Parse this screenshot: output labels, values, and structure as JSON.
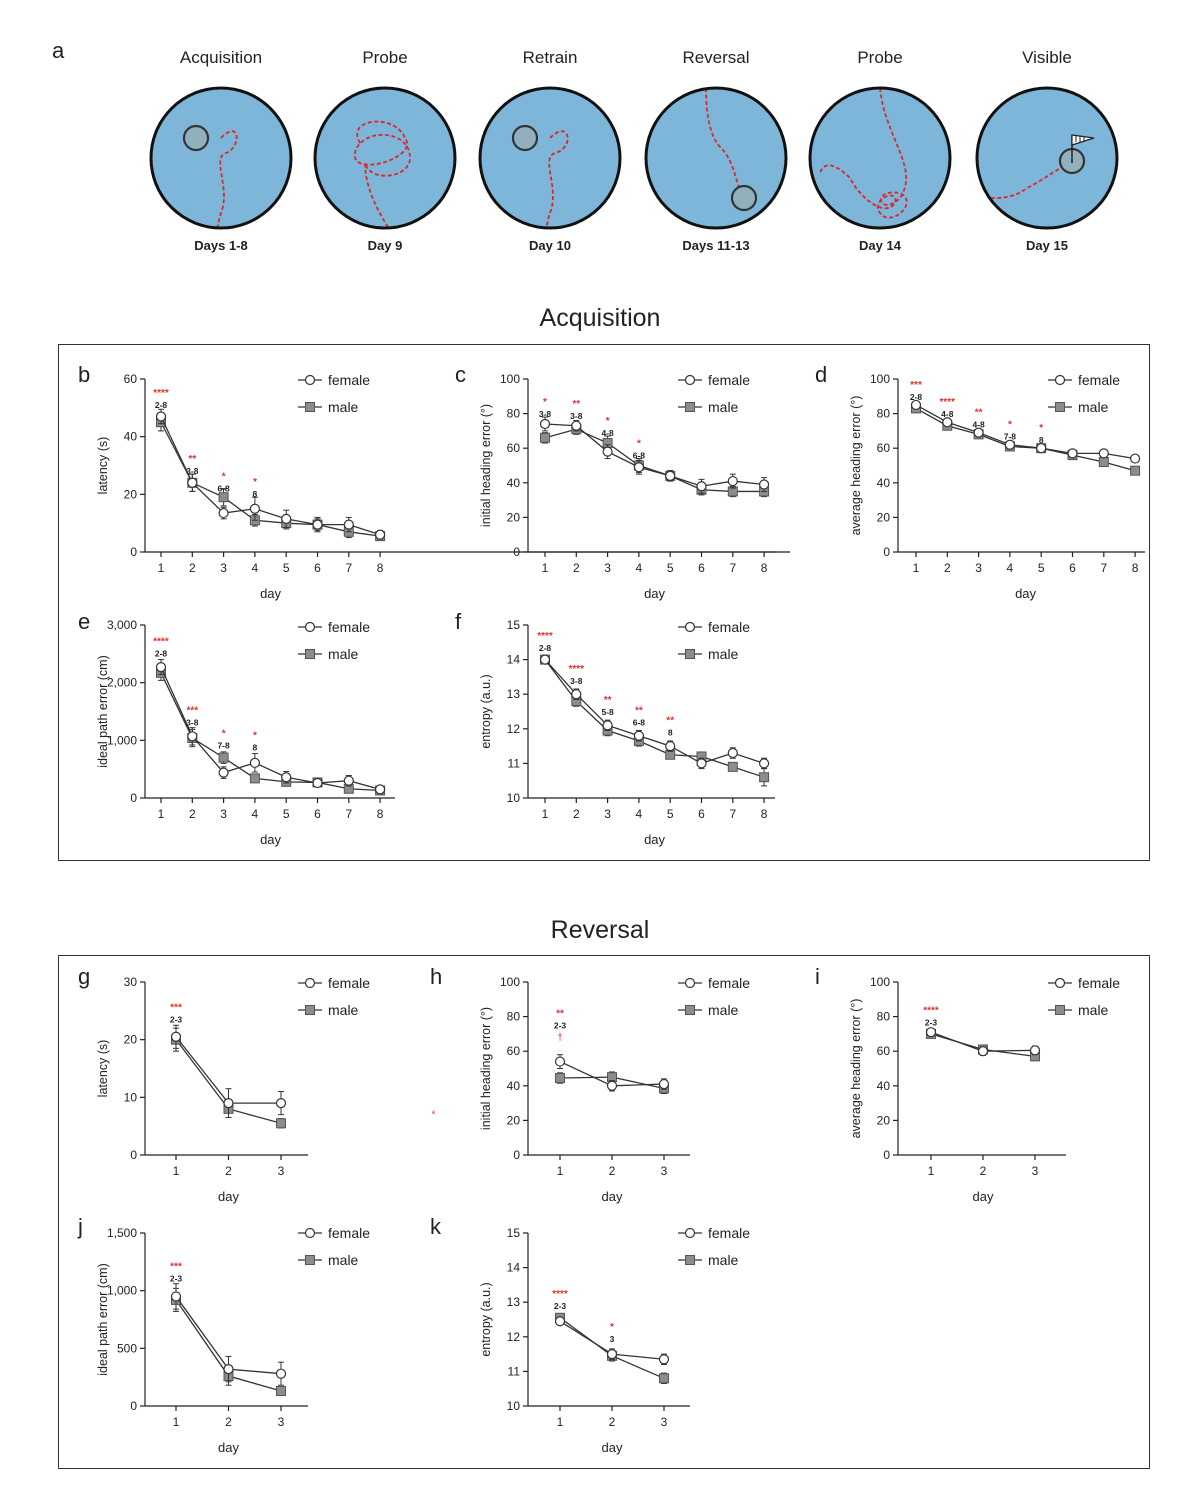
{
  "panel_a": {
    "letter": "a",
    "mazes": [
      {
        "title": "Acquisition",
        "day": "Days 1-8",
        "platform": "nw",
        "path": "acq"
      },
      {
        "title": "Probe",
        "day": "Day 9",
        "platform": "none",
        "path": "probe1"
      },
      {
        "title": "Retrain",
        "day": "Day 10",
        "platform": "nw",
        "path": "retrain"
      },
      {
        "title": "Reversal",
        "day": "Days 11-13",
        "platform": "se",
        "path": "rev"
      },
      {
        "title": "Probe",
        "day": "Day 14",
        "platform": "none",
        "path": "probe2"
      },
      {
        "title": "Visible",
        "day": "Day 15",
        "platform": "ne-flag",
        "path": "visible"
      }
    ],
    "colors": {
      "pool": "#7eb6da",
      "platform": "#8fb0bc",
      "path": "#d62a2a"
    }
  },
  "sections": {
    "acquisition": "Acquisition",
    "reversal": "Reversal"
  },
  "legend": {
    "female": "female",
    "male": "male"
  },
  "colors": {
    "female": "#ffffff",
    "male": "#8c8c8c",
    "line": "#333333",
    "sig": "#e0322e",
    "text": "#222222"
  },
  "chart_data": [
    {
      "id": "b",
      "type": "line",
      "xlabel": "day",
      "ylabel": "latency (s)",
      "x": [
        1,
        2,
        3,
        4,
        5,
        6,
        7,
        8
      ],
      "ylim": [
        0,
        60
      ],
      "yticks": [
        0,
        20,
        40,
        60
      ],
      "yticklabels": [
        "0",
        "20",
        "40",
        "60"
      ],
      "series": [
        {
          "name": "female",
          "values": [
            47,
            24,
            13.5,
            15,
            11.5,
            9.5,
            9.5,
            6
          ],
          "err": [
            2.5,
            3,
            2,
            4,
            3,
            2.5,
            2.5,
            1.5
          ]
        },
        {
          "name": "male",
          "values": [
            45,
            24,
            19,
            11,
            10,
            9.5,
            7,
            5.5
          ],
          "err": [
            3,
            3,
            3,
            2,
            2,
            2,
            2,
            1
          ]
        }
      ],
      "annotations": [
        {
          "x": 1,
          "sig": "****",
          "range": "2-8",
          "yVal": 50
        },
        {
          "x": 2,
          "sig": "**",
          "range": "3-8",
          "yVal": 27
        },
        {
          "x": 3,
          "sig": "*",
          "range": "6-8",
          "yVal": 21
        },
        {
          "x": 4,
          "sig": "*",
          "range": "8",
          "yVal": 19
        }
      ]
    },
    {
      "id": "c",
      "type": "line",
      "xlabel": "day",
      "ylabel": "initial heading error (°)",
      "x": [
        1,
        2,
        3,
        4,
        5,
        6,
        7,
        8
      ],
      "ylim": [
        0,
        100
      ],
      "yticks": [
        0,
        20,
        40,
        60,
        80,
        100
      ],
      "yticklabels": [
        "0",
        "20",
        "40",
        "60",
        "80",
        "100"
      ],
      "series": [
        {
          "name": "female",
          "values": [
            74,
            73,
            58,
            49,
            44,
            38,
            41,
            39
          ],
          "err": [
            4,
            3,
            4,
            4,
            3,
            4,
            4,
            4
          ]
        },
        {
          "name": "male",
          "values": [
            66,
            71,
            63,
            50,
            44,
            36,
            35,
            35
          ],
          "err": [
            3,
            3,
            4,
            4,
            3,
            3,
            3,
            3
          ]
        }
      ],
      "annotations": [
        {
          "x": 1,
          "sig": "*",
          "range": "3-8",
          "yVal": 78
        },
        {
          "x": 2,
          "sig": "**",
          "range": "3-8",
          "yVal": 77
        },
        {
          "x": 3,
          "sig": "*",
          "range": "4-8",
          "yVal": 67
        },
        {
          "x": 4,
          "sig": "*",
          "range": "6-8",
          "yVal": 54
        }
      ]
    },
    {
      "id": "d",
      "type": "line",
      "xlabel": "day",
      "ylabel": "average heading error (°)",
      "x": [
        1,
        2,
        3,
        4,
        5,
        6,
        7,
        8
      ],
      "ylim": [
        0,
        100
      ],
      "yticks": [
        0,
        20,
        40,
        60,
        80,
        100
      ],
      "yticklabels": [
        "0",
        "20",
        "40",
        "60",
        "80",
        "100"
      ],
      "series": [
        {
          "name": "female",
          "values": [
            85,
            75,
            69,
            62,
            60,
            57,
            57,
            54
          ],
          "err": [
            2,
            2,
            2,
            2,
            2,
            2,
            2,
            2
          ]
        },
        {
          "name": "male",
          "values": [
            83,
            73,
            68,
            61,
            60,
            56,
            52,
            47
          ],
          "err": [
            2,
            2,
            2,
            2,
            2,
            2,
            2,
            2
          ]
        }
      ],
      "annotations": [
        {
          "x": 1,
          "sig": "***",
          "range": "2-8",
          "yVal": 88
        },
        {
          "x": 2,
          "sig": "****",
          "range": "4-8",
          "yVal": 78
        },
        {
          "x": 3,
          "sig": "**",
          "range": "4-8",
          "yVal": 72
        },
        {
          "x": 4,
          "sig": "*",
          "range": "7-8",
          "yVal": 65
        },
        {
          "x": 5,
          "sig": "*",
          "range": "8",
          "yVal": 63
        }
      ]
    },
    {
      "id": "e",
      "type": "line",
      "xlabel": "day",
      "ylabel": "ideal path error (cm)",
      "x": [
        1,
        2,
        3,
        4,
        5,
        6,
        7,
        8
      ],
      "ylim": [
        0,
        3000
      ],
      "yticks": [
        0,
        1000,
        2000,
        3000
      ],
      "yticklabels": [
        "0",
        "1,000",
        "2,000",
        "3,000"
      ],
      "series": [
        {
          "name": "female",
          "values": [
            2270,
            1070,
            440,
            610,
            360,
            260,
            300,
            150
          ],
          "err": [
            130,
            150,
            100,
            160,
            100,
            60,
            90,
            40
          ]
        },
        {
          "name": "male",
          "values": [
            2170,
            1040,
            700,
            340,
            280,
            270,
            160,
            130
          ],
          "err": [
            130,
            150,
            100,
            60,
            60,
            60,
            50,
            30
          ]
        }
      ],
      "annotations": [
        {
          "x": 1,
          "sig": "****",
          "range": "2-8",
          "yVal": 2450
        },
        {
          "x": 2,
          "sig": "***",
          "range": "3-8",
          "yVal": 1260
        },
        {
          "x": 3,
          "sig": "*",
          "range": "7-8",
          "yVal": 860
        },
        {
          "x": 4,
          "sig": "*",
          "range": "8",
          "yVal": 820
        }
      ]
    },
    {
      "id": "f",
      "type": "line",
      "xlabel": "day",
      "ylabel": "entropy (a.u.)",
      "x": [
        1,
        2,
        3,
        4,
        5,
        6,
        7,
        8
      ],
      "ylim": [
        10,
        15
      ],
      "yticks": [
        10,
        11,
        12,
        13,
        14,
        15
      ],
      "yticklabels": [
        "10",
        "11",
        "12",
        "13",
        "14",
        "15"
      ],
      "series": [
        {
          "name": "female",
          "values": [
            14.0,
            13.0,
            12.1,
            11.8,
            11.5,
            11.0,
            11.3,
            11.0
          ],
          "err": [
            0.08,
            0.15,
            0.15,
            0.15,
            0.15,
            0.15,
            0.15,
            0.15
          ]
        },
        {
          "name": "male",
          "values": [
            14.0,
            12.8,
            11.95,
            11.65,
            11.25,
            11.2,
            10.9,
            10.6
          ],
          "err": [
            0.08,
            0.15,
            0.15,
            0.15,
            0.1,
            0.1,
            0.1,
            0.25
          ]
        }
      ],
      "annotations": [
        {
          "x": 1,
          "sig": "****",
          "range": "2-8",
          "yVal": 14.25
        },
        {
          "x": 2,
          "sig": "****",
          "range": "3-8",
          "yVal": 13.3
        },
        {
          "x": 3,
          "sig": "**",
          "range": "5-8",
          "yVal": 12.4
        },
        {
          "x": 4,
          "sig": "**",
          "range": "6-8",
          "yVal": 12.1
        },
        {
          "x": 5,
          "sig": "**",
          "range": "8",
          "yVal": 11.8
        }
      ]
    },
    {
      "id": "g",
      "type": "line",
      "xlabel": "day",
      "ylabel": "latency (s)",
      "x": [
        1,
        2,
        3
      ],
      "ylim": [
        0,
        30
      ],
      "yticks": [
        0,
        10,
        20,
        30
      ],
      "yticklabels": [
        "0",
        "10",
        "20",
        "30"
      ],
      "series": [
        {
          "name": "female",
          "values": [
            20.5,
            9,
            9
          ],
          "err": [
            2,
            2.5,
            2
          ]
        },
        {
          "name": "male",
          "values": [
            20,
            8,
            5.5
          ],
          "err": [
            2,
            1.5,
            0.8
          ]
        }
      ],
      "annotations": [
        {
          "x": 1,
          "sig": "***",
          "range": "2-3",
          "yVal": 23
        }
      ],
      "extra_marks": [
        {
          "x": 4,
          "y": 6.5,
          "text": "*"
        }
      ]
    },
    {
      "id": "h",
      "type": "line",
      "xlabel": "day",
      "ylabel": "initial heading error (°)",
      "x": [
        1,
        2,
        3
      ],
      "ylim": [
        0,
        100
      ],
      "yticks": [
        0,
        20,
        40,
        60,
        80,
        100
      ],
      "yticklabels": [
        "0",
        "20",
        "40",
        "60",
        "80",
        "100"
      ],
      "series": [
        {
          "name": "female",
          "values": [
            54,
            40,
            41
          ],
          "err": [
            4,
            3,
            3
          ]
        },
        {
          "name": "male",
          "values": [
            44.5,
            45,
            38.5
          ],
          "err": [
            3,
            3,
            3
          ]
        }
      ],
      "annotations": [
        {
          "x": 1,
          "sig": "**",
          "range": "2-3",
          "yVal": 65,
          "dagger": "†"
        }
      ]
    },
    {
      "id": "i",
      "type": "line",
      "xlabel": "day",
      "ylabel": "average heading error (°)",
      "x": [
        1,
        2,
        3
      ],
      "ylim": [
        0,
        100
      ],
      "yticks": [
        0,
        20,
        40,
        60,
        80,
        100
      ],
      "yticklabels": [
        "0",
        "20",
        "40",
        "60",
        "80",
        "100"
      ],
      "series": [
        {
          "name": "female",
          "values": [
            71,
            60,
            60.5
          ],
          "err": [
            2,
            2.5,
            2.5
          ]
        },
        {
          "name": "male",
          "values": [
            70,
            61,
            57
          ],
          "err": [
            2,
            2,
            2
          ]
        }
      ],
      "annotations": [
        {
          "x": 1,
          "sig": "****",
          "range": "2-3",
          "yVal": 75
        }
      ]
    },
    {
      "id": "j",
      "type": "line",
      "xlabel": "day",
      "ylabel": "ideal path error (cm)",
      "x": [
        1,
        2,
        3
      ],
      "ylim": [
        0,
        1500
      ],
      "yticks": [
        0,
        500,
        1000,
        1500
      ],
      "yticklabels": [
        "0",
        "500",
        "1,000",
        "1,500"
      ],
      "series": [
        {
          "name": "female",
          "values": [
            950,
            320,
            280
          ],
          "err": [
            110,
            110,
            100
          ]
        },
        {
          "name": "male",
          "values": [
            920,
            260,
            130
          ],
          "err": [
            100,
            80,
            30
          ]
        }
      ],
      "annotations": [
        {
          "x": 1,
          "sig": "***",
          "range": "2-3",
          "yVal": 1080
        }
      ]
    },
    {
      "id": "k",
      "type": "line",
      "xlabel": "day",
      "ylabel": "entropy (a.u.)",
      "x": [
        1,
        2,
        3
      ],
      "ylim": [
        10,
        15
      ],
      "yticks": [
        10,
        11,
        12,
        13,
        14,
        15
      ],
      "yticklabels": [
        "10",
        "11",
        "12",
        "13",
        "14",
        "15"
      ],
      "series": [
        {
          "name": "female",
          "values": [
            12.45,
            11.5,
            11.35
          ],
          "err": [
            0.1,
            0.15,
            0.15
          ]
        },
        {
          "name": "male",
          "values": [
            12.55,
            11.45,
            10.8
          ],
          "err": [
            0.1,
            0.15,
            0.15
          ]
        }
      ],
      "annotations": [
        {
          "x": 1,
          "sig": "****",
          "range": "2-3",
          "yVal": 12.8
        },
        {
          "x": 2,
          "sig": "*",
          "range": "3",
          "yVal": 11.85
        }
      ]
    }
  ]
}
